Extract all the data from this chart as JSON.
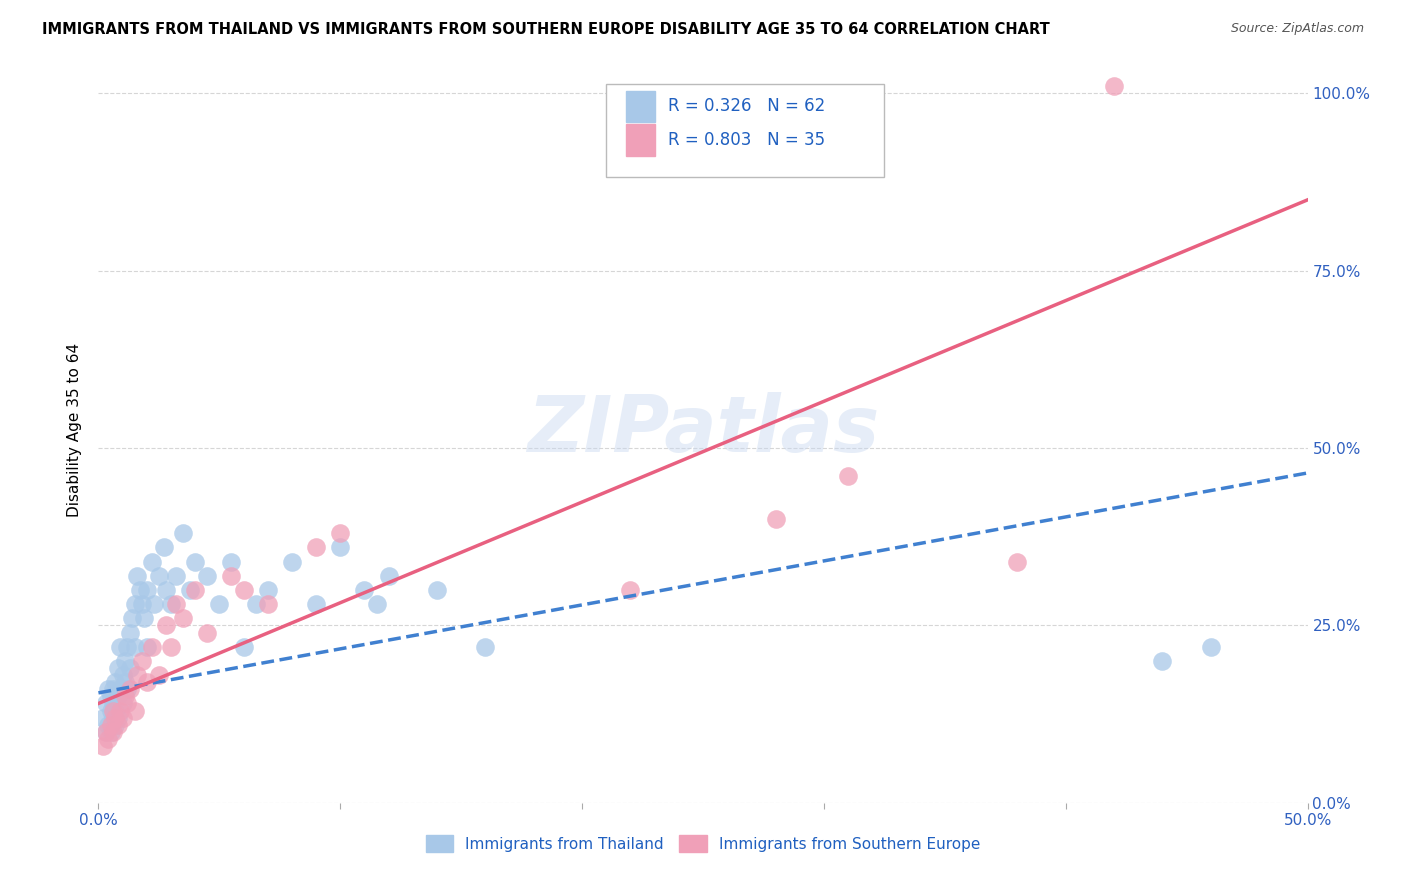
{
  "title": "IMMIGRANTS FROM THAILAND VS IMMIGRANTS FROM SOUTHERN EUROPE DISABILITY AGE 35 TO 64 CORRELATION CHART",
  "source": "Source: ZipAtlas.com",
  "ylabel": "Disability Age 35 to 64",
  "xlim": [
    0.0,
    0.5
  ],
  "ylim": [
    0.0,
    1.05
  ],
  "x_ticks": [
    0.0,
    0.1,
    0.2,
    0.3,
    0.4,
    0.5
  ],
  "x_tick_labels": [
    "0.0%",
    "",
    "",
    "",
    "",
    "50.0%"
  ],
  "y_ticks_right": [
    0.0,
    0.25,
    0.5,
    0.75,
    1.0
  ],
  "y_tick_labels_right": [
    "0.0%",
    "25.0%",
    "50.0%",
    "75.0%",
    "100.0%"
  ],
  "R_thailand": 0.326,
  "N_thailand": 62,
  "R_southern": 0.803,
  "N_southern": 35,
  "watermark": "ZIPatlas",
  "thailand_color": "#a8c8e8",
  "southern_color": "#f0a0b8",
  "thailand_line_color": "#4080d0",
  "southern_line_color": "#e86080",
  "legend_label_thailand": "Immigrants from Thailand",
  "legend_label_southern": "Immigrants from Southern Europe",
  "thai_line_x0": 0.0,
  "thai_line_y0": 0.155,
  "thai_line_x1": 0.5,
  "thai_line_y1": 0.465,
  "south_line_x0": 0.0,
  "south_line_y0": 0.14,
  "south_line_x1": 0.5,
  "south_line_y1": 0.85,
  "thai_scatter_x": [
    0.002,
    0.003,
    0.003,
    0.004,
    0.004,
    0.005,
    0.005,
    0.005,
    0.006,
    0.006,
    0.006,
    0.007,
    0.007,
    0.007,
    0.008,
    0.008,
    0.008,
    0.009,
    0.009,
    0.01,
    0.01,
    0.011,
    0.011,
    0.012,
    0.012,
    0.013,
    0.013,
    0.014,
    0.015,
    0.015,
    0.016,
    0.017,
    0.018,
    0.019,
    0.02,
    0.02,
    0.022,
    0.023,
    0.025,
    0.027,
    0.028,
    0.03,
    0.032,
    0.035,
    0.038,
    0.04,
    0.045,
    0.05,
    0.055,
    0.06,
    0.065,
    0.07,
    0.08,
    0.09,
    0.1,
    0.11,
    0.115,
    0.12,
    0.14,
    0.16,
    0.44,
    0.46
  ],
  "thai_scatter_y": [
    0.12,
    0.1,
    0.14,
    0.11,
    0.16,
    0.1,
    0.13,
    0.15,
    0.12,
    0.16,
    0.14,
    0.11,
    0.17,
    0.13,
    0.12,
    0.19,
    0.15,
    0.16,
    0.22,
    0.14,
    0.18,
    0.2,
    0.17,
    0.22,
    0.16,
    0.24,
    0.19,
    0.26,
    0.28,
    0.22,
    0.32,
    0.3,
    0.28,
    0.26,
    0.3,
    0.22,
    0.34,
    0.28,
    0.32,
    0.36,
    0.3,
    0.28,
    0.32,
    0.38,
    0.3,
    0.34,
    0.32,
    0.28,
    0.34,
    0.22,
    0.28,
    0.3,
    0.34,
    0.28,
    0.36,
    0.3,
    0.28,
    0.32,
    0.3,
    0.22,
    0.2,
    0.22
  ],
  "south_scatter_x": [
    0.002,
    0.003,
    0.004,
    0.005,
    0.006,
    0.006,
    0.007,
    0.008,
    0.009,
    0.01,
    0.011,
    0.012,
    0.013,
    0.015,
    0.016,
    0.018,
    0.02,
    0.022,
    0.025,
    0.028,
    0.03,
    0.032,
    0.035,
    0.04,
    0.045,
    0.055,
    0.06,
    0.07,
    0.09,
    0.1,
    0.22,
    0.28,
    0.31,
    0.38,
    0.42
  ],
  "south_scatter_y": [
    0.08,
    0.1,
    0.09,
    0.11,
    0.1,
    0.13,
    0.12,
    0.11,
    0.13,
    0.12,
    0.15,
    0.14,
    0.16,
    0.13,
    0.18,
    0.2,
    0.17,
    0.22,
    0.18,
    0.25,
    0.22,
    0.28,
    0.26,
    0.3,
    0.24,
    0.32,
    0.3,
    0.28,
    0.36,
    0.38,
    0.3,
    0.4,
    0.46,
    0.34,
    1.01
  ]
}
